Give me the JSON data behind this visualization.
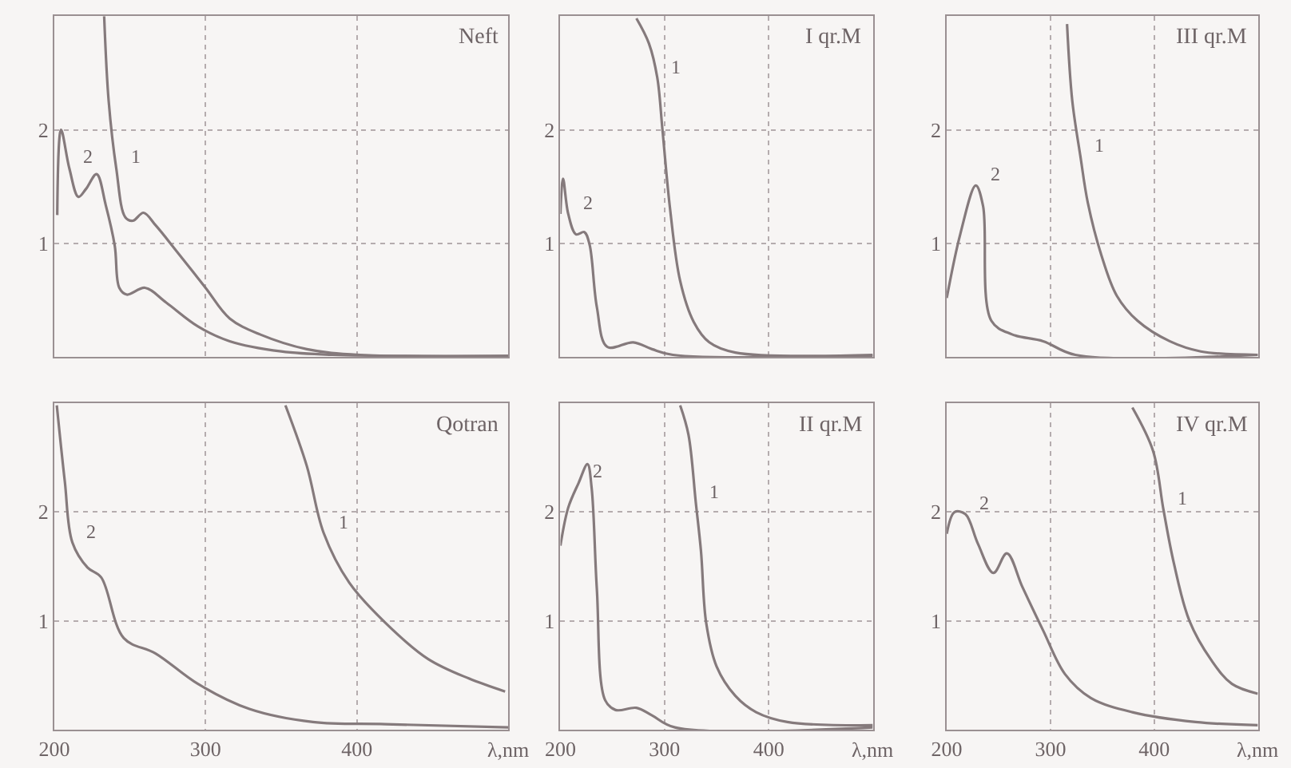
{
  "chart_data": [
    {
      "type": "line",
      "title": "Neft",
      "xlim": [
        200,
        500
      ],
      "xticks": [
        200,
        300,
        400
      ],
      "ylim": [
        0,
        3
      ],
      "yticks": [
        1,
        2
      ],
      "grid": true,
      "legend": false,
      "tick_labels": "y",
      "series": [
        {
          "name": "1",
          "color": "#857a7c",
          "x": [
            233,
            236,
            241,
            247,
            252,
            259,
            267,
            281,
            300,
            316,
            336,
            367,
            402,
            500
          ],
          "values": [
            3.0,
            2.25,
            1.66,
            1.23,
            1.2,
            1.27,
            1.16,
            0.93,
            0.61,
            0.34,
            0.2,
            0.07,
            0.02,
            0.01
          ]
        },
        {
          "name": "2",
          "color": "#857a7c",
          "x": [
            202,
            204.5,
            210,
            216,
            221,
            228,
            234,
            240,
            243,
            248,
            260,
            274,
            295,
            316,
            350,
            384,
            500
          ],
          "values": [
            1.25,
            2.0,
            1.66,
            1.41,
            1.48,
            1.61,
            1.34,
            0.98,
            0.61,
            0.55,
            0.61,
            0.48,
            0.27,
            0.14,
            0.05,
            0.02,
            0.01
          ]
        }
      ]
    },
    {
      "type": "line",
      "title": "Qotran",
      "xlabel": "λ,nm",
      "xlim": [
        200,
        500
      ],
      "xticks": [
        200,
        300,
        400
      ],
      "ylim": [
        0,
        3
      ],
      "yticks": [
        1,
        2
      ],
      "grid": true,
      "legend": false,
      "series": [
        {
          "name": "1",
          "color": "#857a7c",
          "x": [
            352.8,
            367,
            378,
            395,
            419,
            447,
            474,
            498
          ],
          "values": [
            2.98,
            2.42,
            1.81,
            1.35,
            0.98,
            0.65,
            0.47,
            0.35
          ]
        },
        {
          "name": "2",
          "color": "#857a7c",
          "x": [
            201.7,
            207,
            212,
            222,
            231,
            246,
            267,
            295,
            329,
            371,
            419,
            500
          ],
          "values": [
            2.98,
            2.28,
            1.72,
            1.49,
            1.4,
            0.84,
            0.7,
            0.42,
            0.19,
            0.07,
            0.05,
            0.02
          ]
        }
      ]
    },
    {
      "type": "line",
      "title": "I qr.M",
      "xlim": [
        200,
        500
      ],
      "xticks": [
        200,
        300,
        400
      ],
      "ylim": [
        0,
        3
      ],
      "yticks": [
        1,
        2
      ],
      "grid": true,
      "legend": false,
      "tick_labels": "y",
      "series": [
        {
          "name": "1",
          "color": "#857a7c",
          "x": [
            273,
            285,
            293,
            298,
            305,
            315,
            328,
            343,
            368,
            500
          ],
          "values": [
            2.98,
            2.76,
            2.46,
            2.0,
            1.33,
            0.67,
            0.31,
            0.13,
            0.04,
            0.02
          ]
        },
        {
          "name": "2",
          "color": "#857a7c",
          "x": [
            200,
            202.5,
            207.5,
            215,
            223,
            228,
            235,
            245,
            270,
            288,
            308,
            500
          ],
          "values": [
            1.26,
            1.57,
            1.26,
            1.08,
            1.1,
            0.99,
            0.44,
            0.09,
            0.13,
            0.07,
            0.02,
            0.01
          ]
        }
      ]
    },
    {
      "type": "line",
      "title": "II qr.M",
      "xlabel": "λ,nm",
      "xlim": [
        200,
        500
      ],
      "xticks": [
        200,
        300,
        400
      ],
      "ylim": [
        0,
        3
      ],
      "yticks": [
        1,
        2
      ],
      "grid": true,
      "legend": false,
      "series": [
        {
          "name": "1",
          "color": "#857a7c",
          "x": [
            315,
            323,
            330,
            335,
            340,
            350,
            368,
            388,
            418,
            500
          ],
          "values": [
            2.98,
            2.71,
            2.09,
            1.64,
            0.98,
            0.58,
            0.31,
            0.16,
            0.07,
            0.04
          ]
        },
        {
          "name": "2",
          "color": "#857a7c",
          "x": [
            200,
            207.5,
            217.6,
            226,
            230,
            235,
            243,
            253,
            273,
            288,
            310,
            500
          ],
          "values": [
            1.69,
            2.04,
            2.27,
            2.44,
            2.22,
            1.29,
            0.27,
            0.18,
            0.2,
            0.13,
            0.02,
            0.02
          ]
        }
      ]
    },
    {
      "type": "line",
      "title": "III qr.M",
      "xlim": [
        200,
        500
      ],
      "xticks": [
        200,
        300,
        400
      ],
      "ylim": [
        0,
        3
      ],
      "yticks": [
        1,
        2
      ],
      "grid": true,
      "legend": false,
      "tick_labels": "y",
      "series": [
        {
          "name": "1",
          "color": "#857a7c",
          "x": [
            316,
            321,
            329,
            336,
            349,
            364,
            384,
            415,
            445,
            500
          ],
          "values": [
            2.93,
            2.26,
            1.76,
            1.36,
            0.9,
            0.54,
            0.32,
            0.14,
            0.05,
            0.02
          ]
        },
        {
          "name": "2",
          "color": "#857a7c",
          "x": [
            200,
            213,
            228,
            235,
            243,
            263,
            293,
            324,
            500
          ],
          "values": [
            0.52,
            1.08,
            1.51,
            1.33,
            0.32,
            0.2,
            0.14,
            0.02,
            0.02
          ]
        }
      ]
    },
    {
      "type": "line",
      "title": "IV qr.M",
      "xlabel": "λ,nm",
      "xlim": [
        200,
        500
      ],
      "xticks": [
        200,
        300,
        400
      ],
      "ylim": [
        0,
        3
      ],
      "yticks": [
        1,
        2
      ],
      "grid": true,
      "legend": false,
      "series": [
        {
          "name": "1",
          "color": "#857a7c",
          "x": [
            379,
            399,
            409,
            419,
            434,
            455,
            475,
            500
          ],
          "values": [
            2.96,
            2.56,
            2.02,
            1.53,
            1.0,
            0.64,
            0.42,
            0.33
          ]
        },
        {
          "name": "2",
          "color": "#857a7c",
          "x": [
            200,
            207.6,
            218,
            230,
            245,
            258,
            273,
            293,
            314,
            339,
            379,
            440,
            500
          ],
          "values": [
            1.8,
            2.0,
            1.98,
            1.71,
            1.44,
            1.62,
            1.31,
            0.91,
            0.51,
            0.29,
            0.16,
            0.07,
            0.04
          ]
        }
      ]
    }
  ]
}
